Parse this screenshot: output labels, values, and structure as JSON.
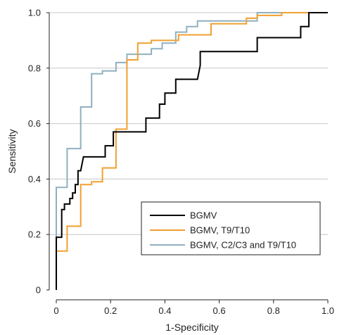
{
  "chart_data": {
    "type": "line",
    "title": "",
    "xlabel": "1-Specificity",
    "ylabel": "Sensitivity",
    "xlim": [
      0,
      1.0
    ],
    "ylim": [
      0,
      1.0
    ],
    "x_ticks": [
      "0",
      "0.2",
      "0.4",
      "0.6",
      "0.8",
      "1.0"
    ],
    "y_ticks": [
      "0",
      "0.2",
      "0.4",
      "0.6",
      "0.8",
      "1.0"
    ],
    "grid": "horizontal",
    "legend_position": "bottom-right",
    "series": [
      {
        "name": "BGMV",
        "color": "#000000",
        "points": [
          [
            0,
            0
          ],
          [
            0,
            0.19
          ],
          [
            0.02,
            0.19
          ],
          [
            0.02,
            0.29
          ],
          [
            0.03,
            0.29
          ],
          [
            0.03,
            0.31
          ],
          [
            0.05,
            0.31
          ],
          [
            0.05,
            0.33
          ],
          [
            0.06,
            0.33
          ],
          [
            0.06,
            0.35
          ],
          [
            0.07,
            0.35
          ],
          [
            0.07,
            0.38
          ],
          [
            0.08,
            0.38
          ],
          [
            0.08,
            0.43
          ],
          [
            0.09,
            0.43
          ],
          [
            0.1,
            0.48
          ],
          [
            0.18,
            0.48
          ],
          [
            0.18,
            0.52
          ],
          [
            0.21,
            0.52
          ],
          [
            0.21,
            0.57
          ],
          [
            0.23,
            0.57
          ],
          [
            0.23,
            0.57
          ],
          [
            0.33,
            0.57
          ],
          [
            0.33,
            0.62
          ],
          [
            0.38,
            0.62
          ],
          [
            0.38,
            0.67
          ],
          [
            0.4,
            0.67
          ],
          [
            0.4,
            0.71
          ],
          [
            0.44,
            0.71
          ],
          [
            0.44,
            0.76
          ],
          [
            0.52,
            0.76
          ],
          [
            0.53,
            0.81
          ],
          [
            0.53,
            0.86
          ],
          [
            0.74,
            0.86
          ],
          [
            0.74,
            0.91
          ],
          [
            0.9,
            0.91
          ],
          [
            0.9,
            0.95
          ],
          [
            0.93,
            0.95
          ],
          [
            0.93,
            1.0
          ],
          [
            1.0,
            1.0
          ]
        ]
      },
      {
        "name": "BGMV, T9/T10",
        "color": "#f0a030",
        "points": [
          [
            0,
            0
          ],
          [
            0,
            0.14
          ],
          [
            0.04,
            0.14
          ],
          [
            0.04,
            0.23
          ],
          [
            0.09,
            0.23
          ],
          [
            0.09,
            0.38
          ],
          [
            0.13,
            0.38
          ],
          [
            0.13,
            0.39
          ],
          [
            0.17,
            0.39
          ],
          [
            0.17,
            0.44
          ],
          [
            0.22,
            0.44
          ],
          [
            0.22,
            0.58
          ],
          [
            0.26,
            0.58
          ],
          [
            0.26,
            0.83
          ],
          [
            0.3,
            0.83
          ],
          [
            0.3,
            0.89
          ],
          [
            0.35,
            0.89
          ],
          [
            0.35,
            0.9
          ],
          [
            0.45,
            0.9
          ],
          [
            0.45,
            0.92
          ],
          [
            0.57,
            0.92
          ],
          [
            0.57,
            0.96
          ],
          [
            0.7,
            0.96
          ],
          [
            0.7,
            0.98
          ],
          [
            0.74,
            0.98
          ],
          [
            0.74,
            0.99
          ],
          [
            0.83,
            0.99
          ],
          [
            0.83,
            1.0
          ],
          [
            1.0,
            1.0
          ]
        ]
      },
      {
        "name": "BGMV, C2/C3 and T9/T10",
        "color": "#8fb0bf",
        "points": [
          [
            0,
            0
          ],
          [
            0,
            0.37
          ],
          [
            0.04,
            0.37
          ],
          [
            0.04,
            0.51
          ],
          [
            0.09,
            0.51
          ],
          [
            0.09,
            0.66
          ],
          [
            0.13,
            0.66
          ],
          [
            0.13,
            0.78
          ],
          [
            0.17,
            0.78
          ],
          [
            0.17,
            0.79
          ],
          [
            0.22,
            0.79
          ],
          [
            0.22,
            0.82
          ],
          [
            0.26,
            0.82
          ],
          [
            0.26,
            0.85
          ],
          [
            0.35,
            0.85
          ],
          [
            0.35,
            0.87
          ],
          [
            0.39,
            0.87
          ],
          [
            0.39,
            0.89
          ],
          [
            0.44,
            0.89
          ],
          [
            0.44,
            0.93
          ],
          [
            0.48,
            0.93
          ],
          [
            0.48,
            0.95
          ],
          [
            0.52,
            0.95
          ],
          [
            0.52,
            0.97
          ],
          [
            0.74,
            0.97
          ],
          [
            0.74,
            1.0
          ],
          [
            1.0,
            1.0
          ]
        ]
      }
    ]
  }
}
